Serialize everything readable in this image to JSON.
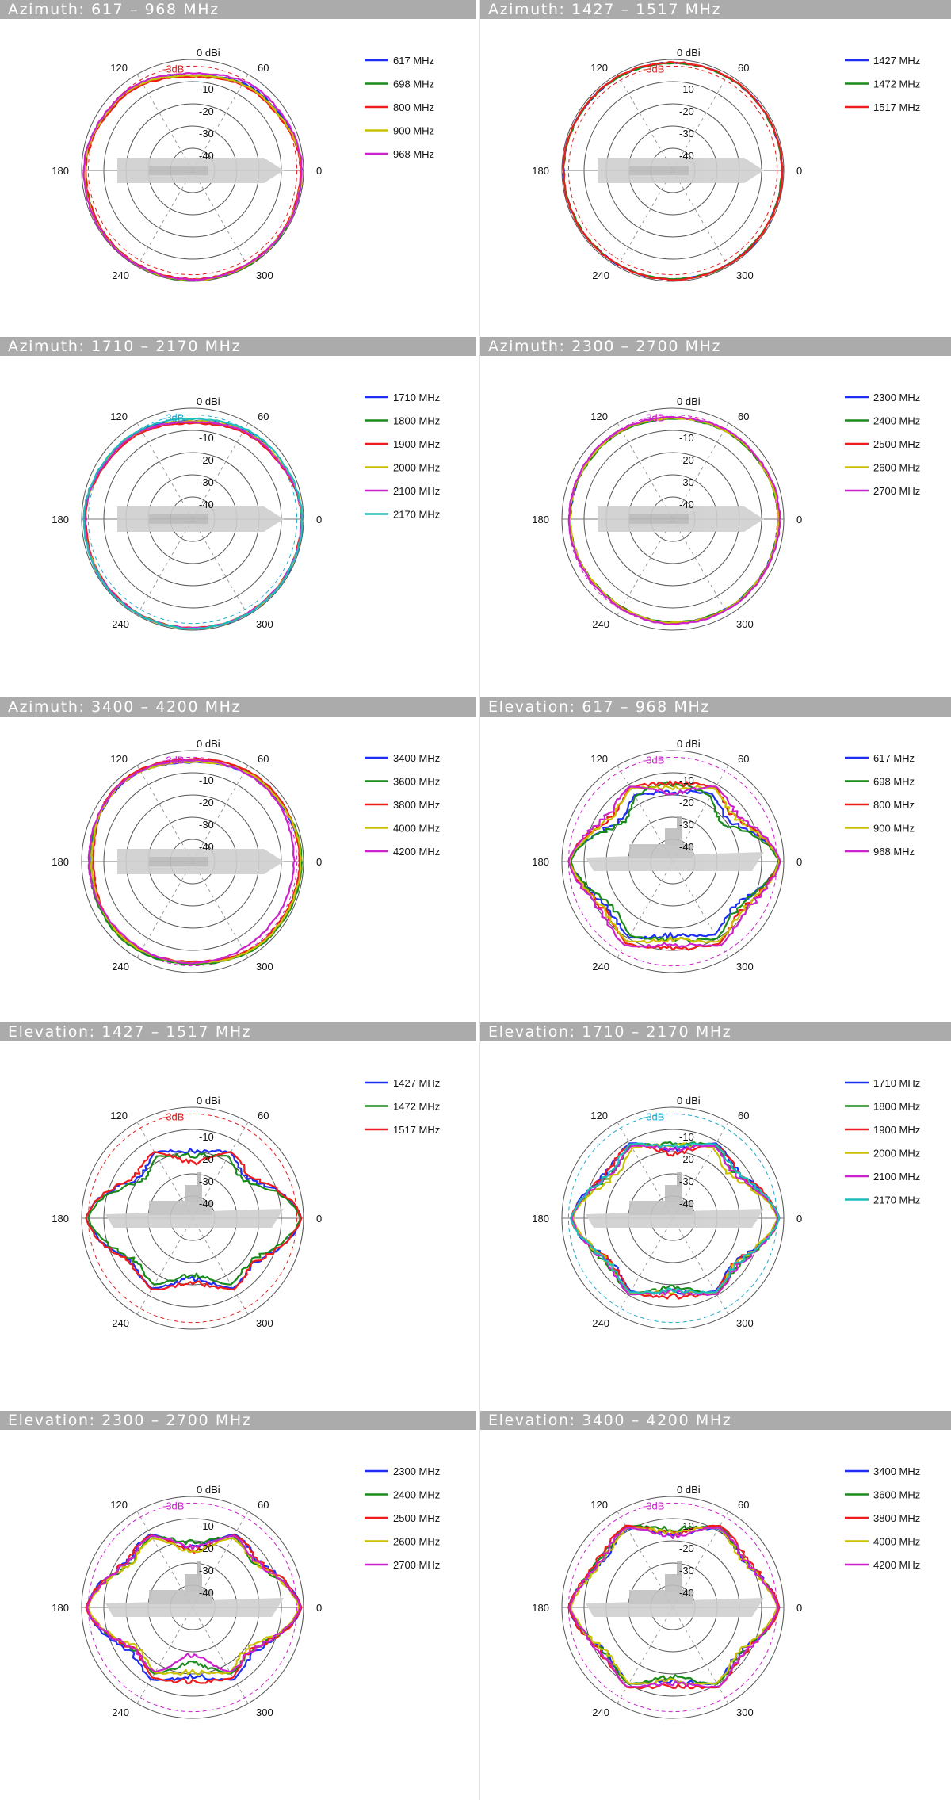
{
  "figure": {
    "legend_suffix": " MHz",
    "rings": [
      "0 dBi",
      "-10",
      "-20",
      "-30",
      "-40"
    ],
    "minus3_label": "-3dB",
    "angle_labels": {
      "a0": "0",
      "a60": "60",
      "a120": "120",
      "a180": "180",
      "a240": "240",
      "a300": "300"
    }
  },
  "chart_data": [
    {
      "type": "polar",
      "title": "Azimuth: 617 – 968 MHz",
      "plane": "azimuth",
      "rlim": [
        -50,
        0
      ],
      "minus3_color": "#dd2222",
      "series": [
        {
          "name": "617",
          "color": "#1f2ef5",
          "values": [
            -0.5,
            -3.5,
            -7.0,
            -3.5,
            -1.0,
            -0.5,
            -0.5,
            -0.5
          ]
        },
        {
          "name": "698",
          "color": "#1a8a1a",
          "values": [
            -0.8,
            -4.0,
            -7.0,
            -3.8,
            -1.2,
            -0.6,
            -0.2,
            -0.3
          ]
        },
        {
          "name": "800",
          "color": "#ee1c1c",
          "values": [
            -1.0,
            -4.5,
            -7.5,
            -4.2,
            -1.5,
            -0.8,
            -0.8,
            -0.8
          ]
        },
        {
          "name": "900",
          "color": "#c8c000",
          "values": [
            -0.6,
            -4.0,
            -7.0,
            -3.5,
            -1.0,
            -0.4,
            -0.3,
            -0.5
          ]
        },
        {
          "name": "968",
          "color": "#cc22cc",
          "values": [
            -0.5,
            -2.5,
            -6.0,
            -3.0,
            -0.8,
            -0.3,
            -0.5,
            -0.6
          ]
        }
      ]
    },
    {
      "type": "polar",
      "title": "Azimuth: 1427 – 1517 MHz",
      "plane": "azimuth",
      "rlim": [
        -50,
        0
      ],
      "minus3_color": "#dd2222",
      "series": [
        {
          "name": "1427",
          "color": "#1f2ef5",
          "values": [
            -0.5,
            -0.8,
            -1.2,
            -0.9,
            -0.5,
            -0.6,
            -0.6,
            -0.5
          ]
        },
        {
          "name": "1472",
          "color": "#1a8a1a",
          "values": [
            -0.6,
            -0.9,
            -1.3,
            -1.0,
            -0.6,
            -0.7,
            -0.7,
            -0.6
          ]
        },
        {
          "name": "1517",
          "color": "#ee1c1c",
          "values": [
            -0.4,
            -0.7,
            -1.0,
            -0.8,
            -0.4,
            -0.5,
            -0.5,
            -0.4
          ]
        }
      ]
    },
    {
      "type": "polar",
      "title": "Azimuth: 1710 – 2170 MHz",
      "plane": "azimuth",
      "rlim": [
        -50,
        0
      ],
      "minus3_color": "#22aacc",
      "series": [
        {
          "name": "1710",
          "color": "#1f2ef5",
          "values": [
            -0.5,
            -3.0,
            -5.5,
            -3.0,
            -1.0,
            -0.5,
            -0.5,
            -0.5
          ]
        },
        {
          "name": "1800",
          "color": "#1a8a1a",
          "values": [
            -0.6,
            -3.5,
            -6.0,
            -3.5,
            -1.2,
            -0.6,
            -0.6,
            -0.6
          ]
        },
        {
          "name": "1900",
          "color": "#ee1c1c",
          "values": [
            -0.7,
            -3.8,
            -6.5,
            -3.8,
            -1.5,
            -0.8,
            -0.8,
            -0.7
          ]
        },
        {
          "name": "2000",
          "color": "#c8c000",
          "values": [
            -0.5,
            -3.0,
            -5.5,
            -3.2,
            -1.0,
            -0.5,
            -0.5,
            -0.5
          ]
        },
        {
          "name": "2100",
          "color": "#cc22cc",
          "values": [
            -0.6,
            -3.3,
            -5.8,
            -3.3,
            -1.1,
            -0.6,
            -0.6,
            -0.6
          ]
        },
        {
          "name": "2170",
          "color": "#1fbcbc",
          "values": [
            -0.4,
            -2.0,
            -4.5,
            -2.5,
            -0.8,
            -0.4,
            -0.4,
            -0.4
          ]
        }
      ]
    },
    {
      "type": "polar",
      "title": "Azimuth: 2300 – 2700 MHz",
      "plane": "azimuth",
      "rlim": [
        -50,
        0
      ],
      "minus3_color": "#cc22cc",
      "series": [
        {
          "name": "2300",
          "color": "#1f2ef5",
          "values": [
            -2.0,
            -3.0,
            -4.0,
            -3.5,
            -3.5,
            -4.0,
            -3.0,
            -2.5
          ]
        },
        {
          "name": "2400",
          "color": "#1a8a1a",
          "values": [
            -2.2,
            -3.2,
            -4.5,
            -3.8,
            -3.5,
            -4.2,
            -3.2,
            -2.6
          ]
        },
        {
          "name": "2500",
          "color": "#ee1c1c",
          "values": [
            -1.8,
            -2.8,
            -4.0,
            -3.3,
            -3.2,
            -3.8,
            -2.8,
            -2.2
          ]
        },
        {
          "name": "2600",
          "color": "#c8c000",
          "values": [
            -2.0,
            -3.0,
            -4.2,
            -3.5,
            -3.4,
            -4.0,
            -3.0,
            -2.4
          ]
        },
        {
          "name": "2700",
          "color": "#cc22cc",
          "values": [
            -1.5,
            -2.5,
            -3.8,
            -3.0,
            -3.0,
            -3.5,
            -2.5,
            -2.0
          ]
        }
      ]
    },
    {
      "type": "polar",
      "title": "Azimuth: 3400 – 4200 MHz",
      "plane": "azimuth",
      "rlim": [
        -50,
        0
      ],
      "minus3_color": "#cc22cc",
      "series": [
        {
          "name": "3400",
          "color": "#1f2ef5",
          "values": [
            -1.0,
            -2.5,
            -5.0,
            -2.5,
            -4.0,
            -3.0,
            -4.0,
            -1.5
          ]
        },
        {
          "name": "3600",
          "color": "#1a8a1a",
          "values": [
            -0.5,
            -2.0,
            -4.5,
            -2.0,
            -3.5,
            -2.5,
            -3.5,
            -1.0
          ]
        },
        {
          "name": "3800",
          "color": "#ee1c1c",
          "values": [
            -1.5,
            -1.5,
            -3.5,
            -1.5,
            -5.0,
            -3.5,
            -4.5,
            -2.0
          ]
        },
        {
          "name": "4000",
          "color": "#c8c000",
          "values": [
            -1.0,
            -2.2,
            -4.8,
            -2.2,
            -4.2,
            -3.2,
            -4.0,
            -1.5
          ]
        },
        {
          "name": "4200",
          "color": "#cc22cc",
          "values": [
            -4.0,
            -3.0,
            -4.0,
            -2.0,
            -3.0,
            -4.0,
            -4.0,
            -4.5
          ]
        }
      ]
    },
    {
      "type": "polar",
      "title": "Elevation: 617 – 968 MHz",
      "plane": "elevation",
      "rlim": [
        -50,
        0
      ],
      "minus3_color": "#cc22cc",
      "series": [
        {
          "name": "617",
          "color": "#1f2ef5",
          "values": [
            -2.0,
            -15.0,
            -14.0,
            -16.0,
            -4.0,
            -10.0,
            -12.0,
            -12.0
          ]
        },
        {
          "name": "698",
          "color": "#1a8a1a",
          "values": [
            -2.5,
            -18.0,
            -10.0,
            -18.0,
            -4.0,
            -12.0,
            -10.0,
            -10.0
          ]
        },
        {
          "name": "800",
          "color": "#ee1c1c",
          "values": [
            -2.0,
            -12.0,
            -10.0,
            -12.0,
            -3.0,
            -8.0,
            -6.0,
            -8.0
          ]
        },
        {
          "name": "900",
          "color": "#c8c000",
          "values": [
            -2.0,
            -12.0,
            -12.0,
            -12.0,
            -3.5,
            -8.0,
            -10.0,
            -8.0
          ]
        },
        {
          "name": "968",
          "color": "#cc22cc",
          "values": [
            -1.5,
            -10.0,
            -14.0,
            -10.0,
            -3.0,
            -6.0,
            -8.0,
            -6.0
          ]
        }
      ]
    },
    {
      "type": "polar",
      "title": "Elevation: 1427 – 1517 MHz",
      "plane": "elevation",
      "rlim": [
        -50,
        0
      ],
      "minus3_color": "#dd2222",
      "series": [
        {
          "name": "1427",
          "color": "#1f2ef5",
          "values": [
            -1.0,
            -16.0,
            -15.0,
            -16.0,
            -2.0,
            -12.0,
            -18.0,
            -12.0
          ]
        },
        {
          "name": "1472",
          "color": "#1a8a1a",
          "values": [
            -1.5,
            -18.0,
            -17.0,
            -18.0,
            -3.0,
            -14.0,
            -20.0,
            -14.0
          ]
        },
        {
          "name": "1517",
          "color": "#ee1c1c",
          "values": [
            -1.0,
            -14.0,
            -20.0,
            -14.0,
            -2.0,
            -12.0,
            -16.0,
            -12.0
          ]
        }
      ]
    },
    {
      "type": "polar",
      "title": "Elevation: 1710 – 2170 MHz",
      "plane": "elevation",
      "rlim": [
        -50,
        0
      ],
      "minus3_color": "#22aacc",
      "series": [
        {
          "name": "1710",
          "color": "#1f2ef5",
          "values": [
            -2.0,
            -10.0,
            -14.0,
            -10.0,
            -4.0,
            -12.0,
            -12.0,
            -12.0
          ]
        },
        {
          "name": "1800",
          "color": "#1a8a1a",
          "values": [
            -2.5,
            -12.0,
            -12.0,
            -12.0,
            -4.5,
            -10.0,
            -14.0,
            -10.0
          ]
        },
        {
          "name": "1900",
          "color": "#ee1c1c",
          "values": [
            -2.0,
            -10.0,
            -16.0,
            -10.0,
            -4.0,
            -12.0,
            -10.0,
            -12.0
          ]
        },
        {
          "name": "2000",
          "color": "#c8c000",
          "values": [
            -3.0,
            -14.0,
            -12.0,
            -14.0,
            -5.0,
            -11.0,
            -12.0,
            -11.0
          ]
        },
        {
          "name": "2100",
          "color": "#cc22cc",
          "values": [
            -2.5,
            -12.0,
            -14.0,
            -12.0,
            -4.5,
            -10.0,
            -12.0,
            -10.0
          ]
        },
        {
          "name": "2170",
          "color": "#1fbcbc",
          "values": [
            -2.0,
            -11.0,
            -13.0,
            -11.0,
            -4.0,
            -11.0,
            -13.0,
            -11.0
          ]
        }
      ]
    },
    {
      "type": "polar",
      "title": "Elevation: 2300 – 2700 MHz",
      "plane": "elevation",
      "rlim": [
        -50,
        0
      ],
      "minus3_color": "#cc22cc",
      "series": [
        {
          "name": "2300",
          "color": "#1f2ef5",
          "values": [
            -1.0,
            -10.0,
            -18.0,
            -10.0,
            -2.0,
            -12.0,
            -14.0,
            -12.0
          ]
        },
        {
          "name": "2400",
          "color": "#1a8a1a",
          "values": [
            -1.5,
            -12.0,
            -16.0,
            -12.0,
            -2.5,
            -14.0,
            -20.0,
            -14.0
          ]
        },
        {
          "name": "2500",
          "color": "#ee1c1c",
          "values": [
            -1.0,
            -10.0,
            -20.0,
            -10.0,
            -2.0,
            -14.0,
            -12.0,
            -14.0
          ]
        },
        {
          "name": "2600",
          "color": "#c8c000",
          "values": [
            -2.0,
            -12.0,
            -20.0,
            -12.0,
            -3.0,
            -16.0,
            -16.0,
            -16.0
          ]
        },
        {
          "name": "2700",
          "color": "#cc22cc",
          "values": [
            -1.5,
            -11.0,
            -18.0,
            -11.0,
            -2.5,
            -14.0,
            -24.0,
            -14.0
          ]
        }
      ]
    },
    {
      "type": "polar",
      "title": "Elevation: 3400 – 4200 MHz",
      "plane": "elevation",
      "rlim": [
        -50,
        0
      ],
      "minus3_color": "#cc22cc",
      "series": [
        {
          "name": "3400",
          "color": "#1f2ef5",
          "values": [
            -2.0,
            -8.0,
            -12.0,
            -8.0,
            -3.0,
            -10.0,
            -12.0,
            -10.0
          ]
        },
        {
          "name": "3600",
          "color": "#1a8a1a",
          "values": [
            -2.5,
            -7.0,
            -10.0,
            -7.0,
            -3.5,
            -9.0,
            -14.0,
            -9.0
          ]
        },
        {
          "name": "3800",
          "color": "#ee1c1c",
          "values": [
            -2.0,
            -6.0,
            -12.0,
            -6.0,
            -3.0,
            -8.0,
            -10.0,
            -8.0
          ]
        },
        {
          "name": "4000",
          "color": "#c8c000",
          "values": [
            -3.0,
            -8.0,
            -11.0,
            -8.0,
            -4.0,
            -10.0,
            -12.0,
            -10.0
          ]
        },
        {
          "name": "4200",
          "color": "#cc22cc",
          "values": [
            -2.5,
            -7.0,
            -13.0,
            -7.0,
            -3.5,
            -8.0,
            -11.0,
            -8.0
          ]
        }
      ]
    }
  ]
}
